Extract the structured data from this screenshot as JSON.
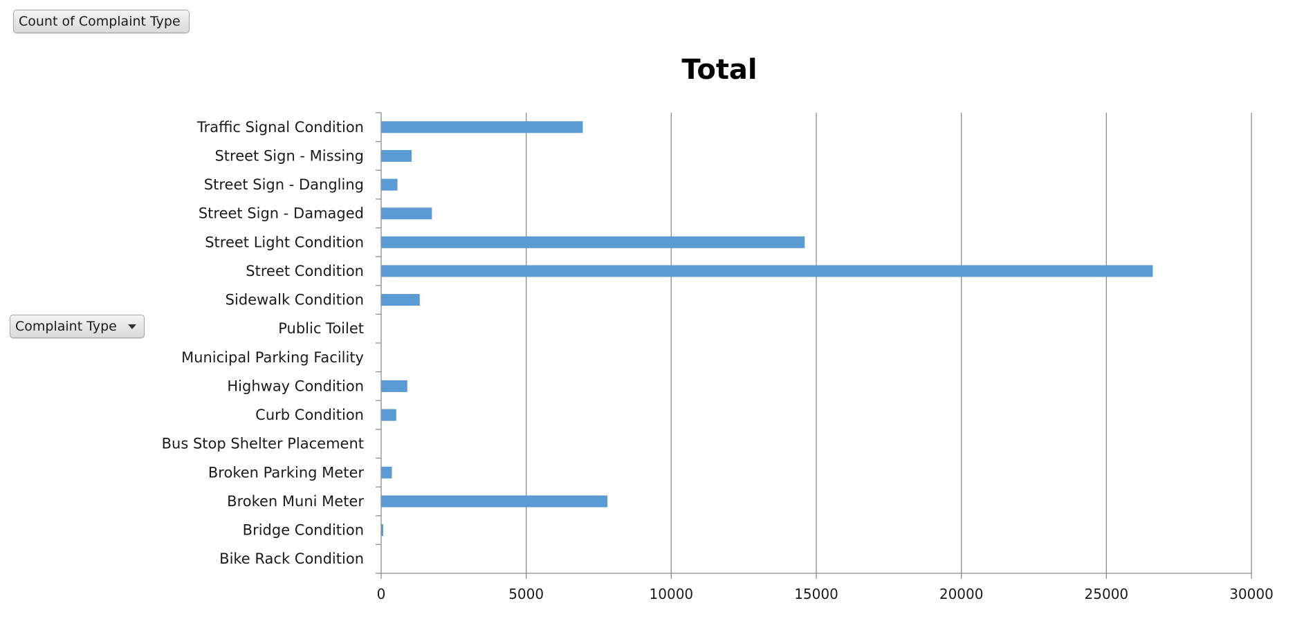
{
  "pivot": {
    "measure_button": "Count of Complaint Type",
    "axis_field_button": "Complaint Type"
  },
  "chart_data": {
    "type": "bar",
    "orientation": "horizontal",
    "title": "Total",
    "categories": [
      "Traffic Signal Condition",
      "Street Sign - Missing",
      "Street Sign - Dangling",
      "Street Sign - Damaged",
      "Street Light Condition",
      "Street Condition",
      "Sidewalk Condition",
      "Public Toilet",
      "Municipal Parking Facility",
      "Highway Condition",
      "Curb Condition",
      "Bus Stop Shelter Placement",
      "Broken Parking Meter",
      "Broken Muni Meter",
      "Bridge Condition",
      "Bike Rack Condition"
    ],
    "values": [
      6950,
      1050,
      560,
      1750,
      14600,
      26600,
      1330,
      0,
      0,
      900,
      520,
      0,
      370,
      7800,
      70,
      0
    ],
    "xlim": [
      0,
      30000
    ],
    "xticks": [
      "0",
      "5000",
      "10000",
      "15000",
      "20000",
      "25000",
      "30000"
    ],
    "xtick_values": [
      0,
      5000,
      10000,
      15000,
      20000,
      25000,
      30000
    ],
    "grid": "vertical",
    "legend": "none",
    "colors": {
      "bar": "#5b9bd5",
      "grid": "#8c8c8c",
      "axis": "#8c8c8c"
    }
  }
}
